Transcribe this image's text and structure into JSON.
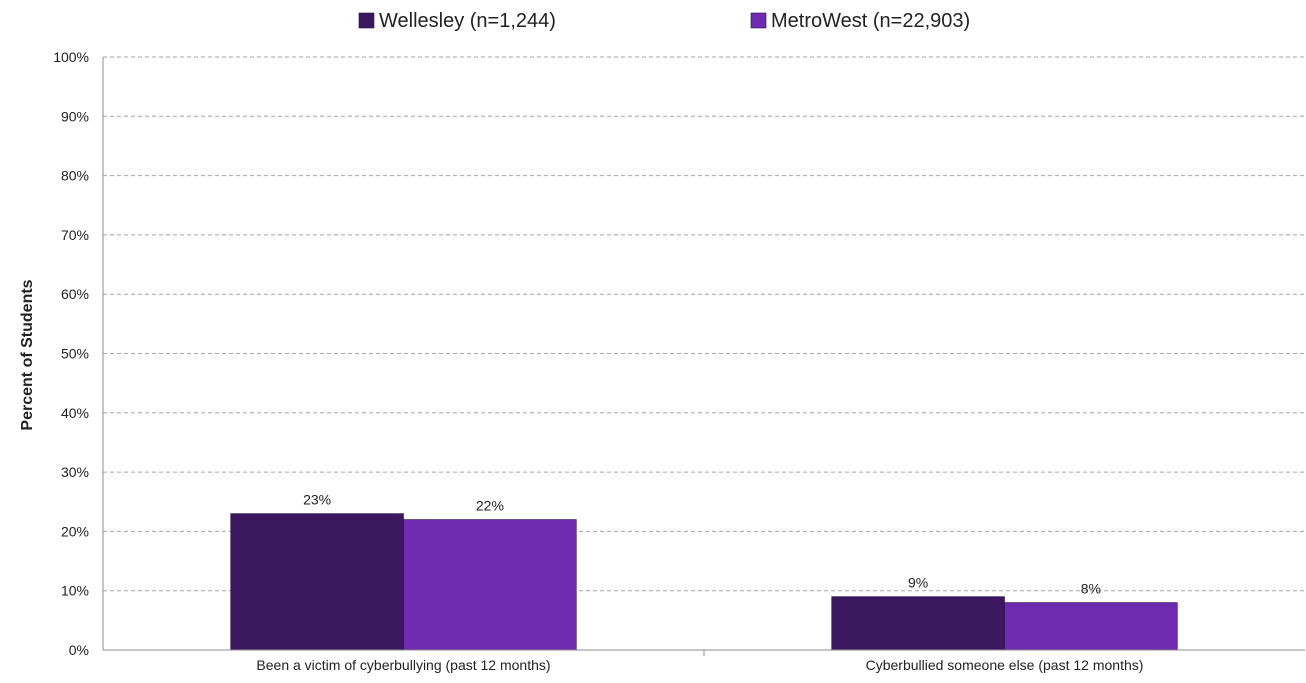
{
  "chart_data": {
    "type": "bar",
    "title": "",
    "xlabel": "",
    "ylabel": "Percent of Students",
    "ylim": [
      0,
      100
    ],
    "yticks": [
      0,
      10,
      20,
      30,
      40,
      50,
      60,
      70,
      80,
      90,
      100
    ],
    "ytick_suffix": "%",
    "grid": true,
    "legend_position": "top",
    "categories": [
      "Been a victim of cyberbullying (past 12 months)",
      "Cyberbullied someone else (past 12 months)"
    ],
    "series": [
      {
        "name": "Wellesley (n=1,244)",
        "color": "#3b1760",
        "values": [
          23,
          9
        ],
        "labels": [
          "23%",
          "9%"
        ]
      },
      {
        "name": "MetroWest (n=22,903)",
        "color": "#6e2ab0",
        "values": [
          22,
          8
        ],
        "labels": [
          "22%",
          "8%"
        ]
      }
    ]
  }
}
